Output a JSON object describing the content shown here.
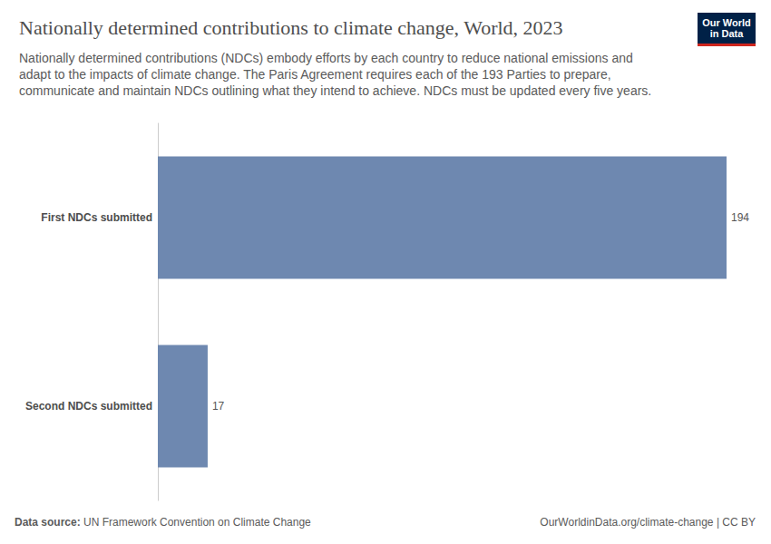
{
  "chart_data": {
    "type": "bar",
    "title": "Nationally determined contributions to climate change, World, 2023",
    "subtitle": "Nationally determined contributions (NDCs) embody efforts by each country to reduce national emissions and adapt to the impacts of climate change. The Paris Agreement requires each of the 193 Parties to prepare, communicate and maintain NDCs outlining what they intend to achieve. NDCs must be updated every five years.",
    "source": "Data source: UN Framework Convention on Climate Change",
    "footer": "OurWorldinData.org/climate-change | CC BY",
    "logo": "Our World\nin Data",
    "categories": [
      "First NDCs submitted",
      "Second NDCs submitted"
    ],
    "values": [
      194,
      17
    ],
    "color": "#6e88b0",
    "orientation": "horizontal",
    "xlim": [
      0,
      194
    ],
    "data_labels": true,
    "tick_labels": "y",
    "grid": false
  }
}
